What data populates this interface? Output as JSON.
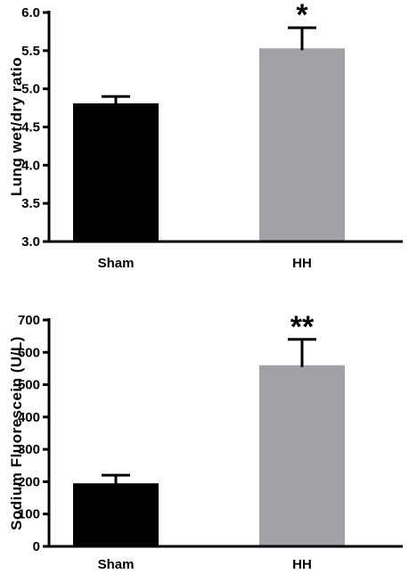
{
  "chart_data": [
    {
      "type": "bar",
      "title": "",
      "xlabel": "",
      "ylabel": "Lung wet/dry ratio",
      "categories": [
        "Sham",
        "HH"
      ],
      "values": [
        4.81,
        5.53
      ],
      "errors": [
        0.09,
        0.27
      ],
      "annotations": [
        "",
        "*"
      ],
      "ylim": [
        3.0,
        6.0
      ],
      "yticks": [
        "3.0",
        "3.5",
        "4.0",
        "4.5",
        "5.0",
        "5.5",
        "6.0"
      ],
      "colors": [
        "#000000",
        "#a2a2a6"
      ],
      "grid": false,
      "legend": "none"
    },
    {
      "type": "bar",
      "title": "",
      "xlabel": "",
      "ylabel": "Sodium Fluorescein (U/L)",
      "categories": [
        "Sham",
        "HH"
      ],
      "values": [
        195,
        560
      ],
      "errors": [
        25,
        80
      ],
      "annotations": [
        "",
        "**"
      ],
      "ylim": [
        0,
        700
      ],
      "yticks": [
        "0",
        "100",
        "200",
        "300",
        "400",
        "500",
        "600",
        "700"
      ],
      "colors": [
        "#000000",
        "#a2a2a6"
      ],
      "grid": false,
      "legend": "none"
    }
  ]
}
